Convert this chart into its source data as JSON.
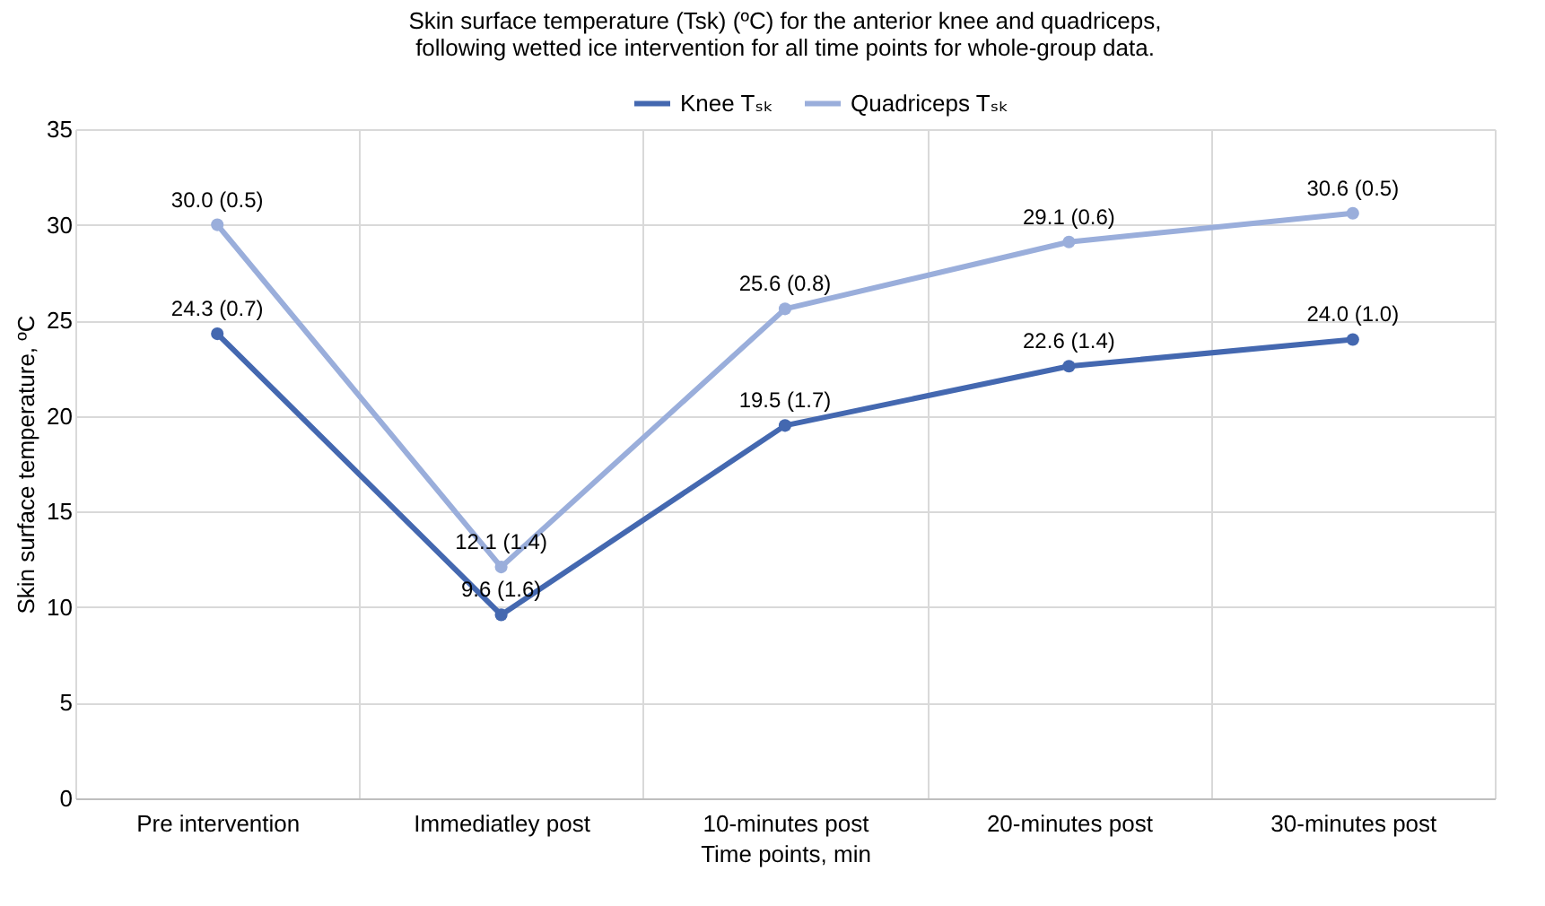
{
  "chart_data": {
    "type": "line",
    "title": "Skin surface temperature (Tsk) (ºC) for the anterior knee and quadriceps,\nfollowing wetted ice intervention for all time points for whole-group data.",
    "xlabel": "Time points, min",
    "ylabel": "Skin surface temperature, ºC",
    "categories": [
      "Pre intervention",
      "Immediatley post",
      "10-minutes post",
      "20-minutes post",
      "30-minutes post"
    ],
    "series": [
      {
        "name": "Knee Tₛₖ",
        "color": "#4468b0",
        "values": [
          24.3,
          9.6,
          19.5,
          22.6,
          24.0
        ],
        "value_labels": [
          "24.3 (0.7)",
          "9.6 (1.6)",
          "19.5 (1.7)",
          "22.6 (1.4)",
          "24.0 (1.0)"
        ]
      },
      {
        "name": "Quadriceps Tₛₖ",
        "color": "#9aaedb",
        "values": [
          30.0,
          12.1,
          25.6,
          29.1,
          30.6
        ],
        "value_labels": [
          "30.0 (0.5)",
          "12.1 (1.4)",
          "25.6 (0.8)",
          "29.1 (0.6)",
          "30.6 (0.5)"
        ]
      }
    ],
    "ylim": [
      0,
      35
    ],
    "yticks": [
      0,
      5,
      10,
      15,
      20,
      25,
      30,
      35
    ],
    "grid": true,
    "legend": "top",
    "marker": "circle",
    "line_style": "solid"
  }
}
